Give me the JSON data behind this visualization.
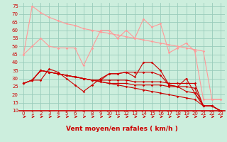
{
  "title": "",
  "xlabel": "Vent moyen/en rafales ( km/h )",
  "background_color": "#cceedd",
  "grid_color": "#99ccbb",
  "x": [
    0,
    1,
    2,
    3,
    4,
    5,
    6,
    7,
    8,
    9,
    10,
    11,
    12,
    13,
    14,
    15,
    16,
    17,
    18,
    19,
    20,
    21,
    22,
    23
  ],
  "lines_light": [
    [
      45,
      50,
      55,
      50,
      49,
      49,
      49,
      38,
      49,
      60,
      60,
      55,
      60,
      55,
      67,
      62,
      64,
      46,
      49,
      52,
      47,
      17,
      17,
      17
    ],
    [
      45,
      75,
      71,
      68,
      66,
      64,
      63,
      61,
      60,
      59,
      58,
      57,
      56,
      55,
      54,
      53,
      52,
      51,
      50,
      49,
      48,
      47,
      17,
      17
    ]
  ],
  "lines_dark": [
    [
      27,
      29,
      29,
      36,
      34,
      30,
      26,
      22,
      26,
      30,
      33,
      33,
      34,
      31,
      40,
      40,
      35,
      26,
      25,
      30,
      21,
      13,
      13,
      10
    ],
    [
      27,
      29,
      35,
      34,
      33,
      32,
      31,
      30,
      29,
      28,
      27,
      26,
      25,
      24,
      23,
      22,
      21,
      20,
      19,
      18,
      17,
      13,
      13,
      10
    ],
    [
      27,
      29,
      35,
      34,
      33,
      32,
      31,
      30,
      29,
      28,
      27,
      27,
      27,
      26,
      26,
      26,
      26,
      25,
      25,
      25,
      24,
      13,
      13,
      10
    ],
    [
      27,
      29,
      35,
      34,
      33,
      32,
      31,
      30,
      29,
      29,
      29,
      29,
      29,
      28,
      28,
      28,
      28,
      27,
      27,
      27,
      27,
      13,
      13,
      10
    ],
    [
      27,
      29,
      35,
      34,
      33,
      32,
      31,
      30,
      29,
      29,
      33,
      33,
      34,
      34,
      34,
      34,
      32,
      26,
      25,
      22,
      21,
      13,
      13,
      10
    ]
  ],
  "light_color": "#ff9999",
  "dark_color": "#cc0000",
  "ylim": [
    10,
    77
  ],
  "xlim": [
    -0.5,
    23.5
  ],
  "yticks": [
    10,
    15,
    20,
    25,
    30,
    35,
    40,
    45,
    50,
    55,
    60,
    65,
    70,
    75
  ],
  "xticks": [
    0,
    1,
    2,
    3,
    4,
    5,
    6,
    7,
    8,
    9,
    10,
    11,
    12,
    13,
    14,
    15,
    16,
    17,
    18,
    19,
    20,
    21,
    22,
    23
  ],
  "figsize": [
    3.2,
    2.0
  ],
  "dpi": 100
}
